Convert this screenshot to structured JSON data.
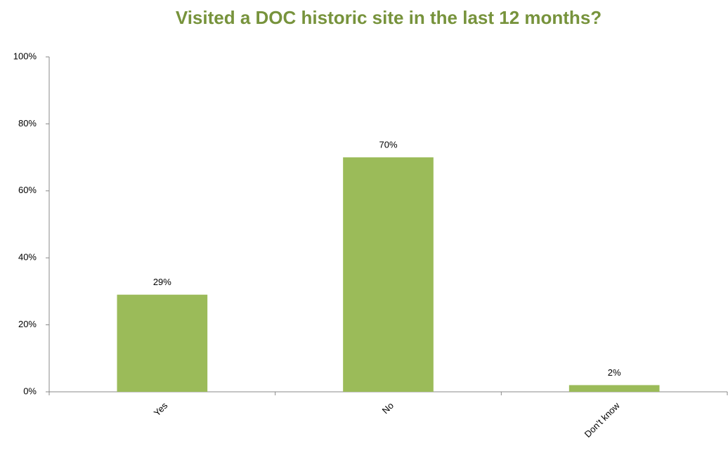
{
  "chart_data": {
    "type": "bar",
    "title": "Visited a DOC historic site in the last 12 months?",
    "categories": [
      "Yes",
      "No",
      "Don’t know"
    ],
    "values": [
      29,
      70,
      2
    ],
    "value_labels": [
      "29%",
      "70%",
      "2%"
    ],
    "color": "#9bbb59",
    "ylim": [
      0,
      100
    ],
    "yticks": [
      {
        "value": 0,
        "label": "0%"
      },
      {
        "value": 20,
        "label": "20%"
      },
      {
        "value": 40,
        "label": "40%"
      },
      {
        "value": 60,
        "label": "60%"
      },
      {
        "value": 80,
        "label": "80%"
      },
      {
        "value": 100,
        "label": "100%"
      }
    ],
    "grid": false
  }
}
